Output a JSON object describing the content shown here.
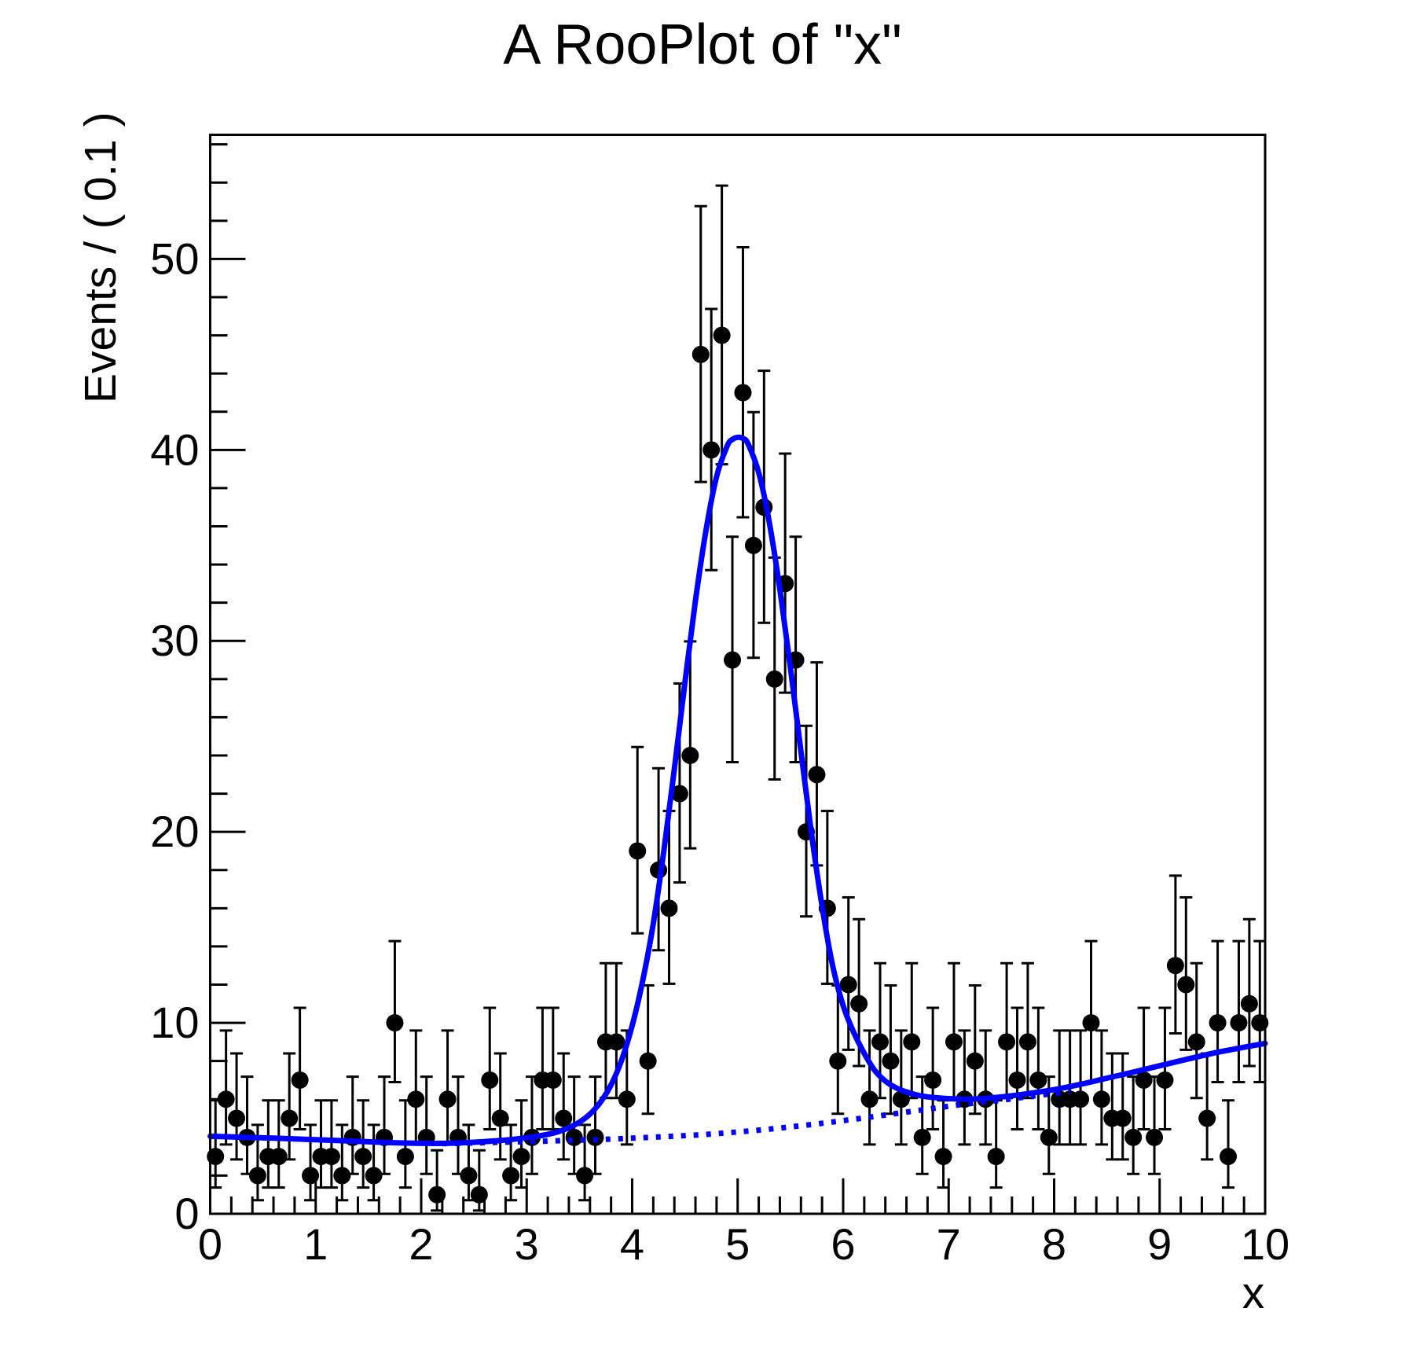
{
  "colors": {
    "curve_blue": "#0000ff",
    "marker_black": "#000000",
    "frame_black": "#000000",
    "background_white": "#ffffff"
  },
  "chart_data": {
    "type": "scatter",
    "title": "A RooPlot of \"x\"",
    "xlabel": "x",
    "ylabel": "Events / ( 0.1 )",
    "xlim": [
      0,
      10
    ],
    "ylim": [
      0,
      56.5
    ],
    "x_ticks": [
      0,
      1,
      2,
      3,
      4,
      5,
      6,
      7,
      8,
      9,
      10
    ],
    "y_ticks": [
      0,
      10,
      20,
      30,
      40,
      50
    ],
    "x_minor_step": 0.2,
    "y_minor_step": 2,
    "grid": false,
    "legend": "none",
    "series": [
      {
        "name": "data-histogram",
        "kind": "points",
        "marker": "filled-circle",
        "error_bars": "poisson-68pct",
        "bin_width": 0.1,
        "first_bin_center": 0.05,
        "counts": [
          3,
          6,
          5,
          4,
          2,
          3,
          3,
          5,
          7,
          2,
          3,
          3,
          2,
          4,
          3,
          2,
          4,
          10,
          3,
          6,
          4,
          1,
          6,
          4,
          2,
          1,
          7,
          5,
          2,
          3,
          4,
          7,
          7,
          5,
          4,
          2,
          4,
          9,
          9,
          6,
          19,
          8,
          18,
          16,
          22,
          24,
          45,
          40,
          46,
          29,
          43,
          35,
          37,
          28,
          33,
          29,
          20,
          23,
          16,
          8,
          12,
          11,
          6,
          9,
          8,
          6,
          9,
          4,
          7,
          3,
          9,
          6,
          8,
          6,
          3,
          9,
          7,
          9,
          7,
          4,
          6,
          6,
          6,
          10,
          6,
          5,
          5,
          4,
          7,
          4,
          7,
          13,
          12,
          9,
          5,
          10,
          3,
          10,
          11,
          10
        ]
      },
      {
        "name": "model-fit-curve",
        "kind": "line",
        "style": "solid",
        "points": [
          [
            0,
            4.06
          ],
          [
            0.3,
            4.01
          ],
          [
            0.6,
            3.96
          ],
          [
            0.9,
            3.9
          ],
          [
            1.2,
            3.84
          ],
          [
            1.5,
            3.77
          ],
          [
            1.8,
            3.71
          ],
          [
            2.0,
            3.69
          ],
          [
            2.2,
            3.69
          ],
          [
            2.4,
            3.72
          ],
          [
            2.6,
            3.78
          ],
          [
            2.8,
            3.86
          ],
          [
            3.0,
            3.98
          ],
          [
            3.1,
            4.06
          ],
          [
            3.2,
            4.16
          ],
          [
            3.3,
            4.3
          ],
          [
            3.4,
            4.51
          ],
          [
            3.5,
            4.8
          ],
          [
            3.6,
            5.22
          ],
          [
            3.7,
            5.85
          ],
          [
            3.8,
            6.75
          ],
          [
            3.9,
            8.05
          ],
          [
            4.0,
            9.85
          ],
          [
            4.1,
            12.2
          ],
          [
            4.2,
            15.2
          ],
          [
            4.3,
            19.0
          ],
          [
            4.4,
            23.3
          ],
          [
            4.5,
            27.8
          ],
          [
            4.6,
            32.1
          ],
          [
            4.7,
            35.8
          ],
          [
            4.8,
            38.6
          ],
          [
            4.9,
            40.2
          ],
          [
            4.95,
            40.55
          ],
          [
            5.0,
            40.66
          ],
          [
            5.05,
            40.6
          ],
          [
            5.1,
            40.3
          ],
          [
            5.2,
            38.8
          ],
          [
            5.3,
            36.2
          ],
          [
            5.4,
            32.7
          ],
          [
            5.5,
            28.6
          ],
          [
            5.6,
            24.2
          ],
          [
            5.7,
            19.9
          ],
          [
            5.8,
            16.1
          ],
          [
            5.9,
            13.0
          ],
          [
            6.0,
            10.9
          ],
          [
            6.1,
            9.5
          ],
          [
            6.2,
            8.4
          ],
          [
            6.3,
            7.5
          ],
          [
            6.4,
            6.95
          ],
          [
            6.5,
            6.6
          ],
          [
            6.6,
            6.38
          ],
          [
            6.7,
            6.22
          ],
          [
            6.8,
            6.12
          ],
          [
            6.9,
            6.07
          ],
          [
            7.0,
            6.03
          ],
          [
            7.2,
            6.0
          ],
          [
            7.4,
            6.07
          ],
          [
            7.6,
            6.18
          ],
          [
            7.8,
            6.33
          ],
          [
            8.0,
            6.5
          ],
          [
            8.25,
            6.78
          ],
          [
            8.5,
            7.1
          ],
          [
            8.75,
            7.42
          ],
          [
            9.0,
            7.75
          ],
          [
            9.25,
            8.08
          ],
          [
            9.5,
            8.4
          ],
          [
            9.75,
            8.67
          ],
          [
            10,
            8.92
          ]
        ]
      },
      {
        "name": "background-component-curve",
        "kind": "line",
        "style": "dotted",
        "points": [
          [
            2.2,
            3.67
          ],
          [
            2.5,
            3.71
          ],
          [
            2.8,
            3.75
          ],
          [
            3.1,
            3.79
          ],
          [
            3.4,
            3.84
          ],
          [
            3.7,
            3.89
          ],
          [
            4.0,
            3.96
          ],
          [
            4.3,
            4.04
          ],
          [
            4.6,
            4.12
          ],
          [
            4.9,
            4.24
          ],
          [
            5.2,
            4.38
          ],
          [
            5.5,
            4.55
          ],
          [
            5.8,
            4.74
          ],
          [
            6.0,
            4.88
          ],
          [
            6.25,
            5.06
          ],
          [
            6.5,
            5.25
          ],
          [
            6.75,
            5.44
          ],
          [
            7.0,
            5.63
          ],
          [
            7.25,
            5.8
          ],
          [
            7.5,
            5.95
          ],
          [
            7.75,
            6.13
          ],
          [
            8.0,
            6.3
          ],
          [
            8.15,
            6.4
          ]
        ]
      }
    ]
  }
}
